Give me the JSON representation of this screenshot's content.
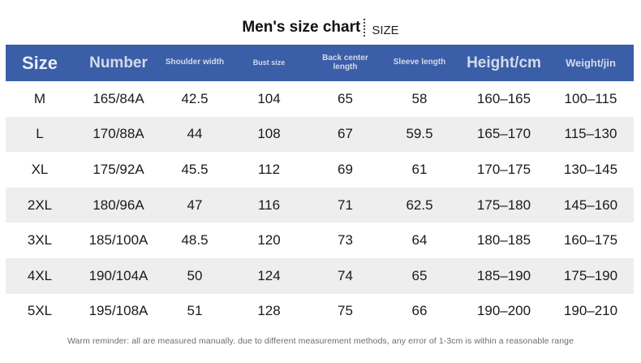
{
  "title": {
    "main": "Men's size chart",
    "sub": "SIZE"
  },
  "table": {
    "headers": [
      "Size",
      "Number",
      "Shoulder width",
      "Bust size",
      "Back center length",
      "Sleeve length",
      "Height/cm",
      "Weight/jin"
    ],
    "rows": [
      [
        "M",
        "165/84A",
        "42.5",
        "104",
        "65",
        "58",
        "160–165",
        "100–115"
      ],
      [
        "L",
        "170/88A",
        "44",
        "108",
        "67",
        "59.5",
        "165–170",
        "115–130"
      ],
      [
        "XL",
        "175/92A",
        "45.5",
        "112",
        "69",
        "61",
        "170–175",
        "130–145"
      ],
      [
        "2XL",
        "180/96A",
        "47",
        "116",
        "71",
        "62.5",
        "175–180",
        "145–160"
      ],
      [
        "3XL",
        "185/100A",
        "48.5",
        "120",
        "73",
        "64",
        "180–185",
        "160–175"
      ],
      [
        "4XL",
        "190/104A",
        "50",
        "124",
        "74",
        "65",
        "185–190",
        "175–190"
      ],
      [
        "5XL",
        "195/108A",
        "51",
        "128",
        "75",
        "66",
        "190–200",
        "190–210"
      ]
    ]
  },
  "footer": "Warm reminder: all are measured manually. due to different measurement methods, any error of 1-3cm is within a reasonable range",
  "colors": {
    "header_bg": "#3a5ea8",
    "header_text": "#d4dae8",
    "row_shade": "#eeeeee"
  }
}
